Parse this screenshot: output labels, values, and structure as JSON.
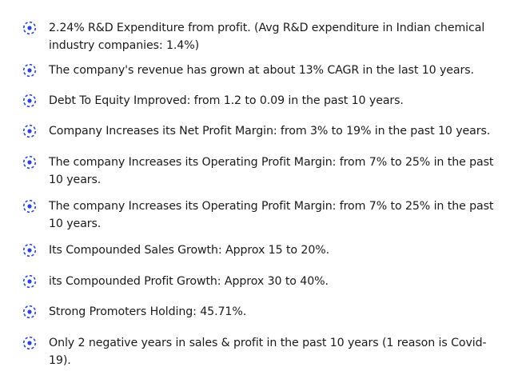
{
  "colors": {
    "bullet_accent": "#2b45d8",
    "text": "#1a1a1a",
    "background": "#ffffff"
  },
  "bullet_icon_name": "dashed-circle-dot-icon",
  "items": [
    {
      "text": "2.24% R&D Expenditure from profit. (Avg R&D expenditure in Indian chemical industry companies: 1.4%)"
    },
    {
      "text": "The company's revenue has grown at about 13% CAGR in the last 10 years."
    },
    {
      "text": "Debt To Equity Improved: from 1.2 to 0.09 in the past 10 years."
    },
    {
      "text": "Company Increases its Net Profit Margin: from 3% to 19% in the past 10 years."
    },
    {
      "text": "The company Increases its Operating Profit Margin: from 7% to 25% in the past 10 years."
    },
    {
      "text": "The company Increases its Operating Profit Margin: from 7% to 25% in the past 10 years."
    },
    {
      "text": "Its Compounded Sales Growth: Approx 15 to 20%."
    },
    {
      "text": "its Compounded Profit Growth: Approx 30 to 40%."
    },
    {
      "text": "Strong Promoters Holding: 45.71%."
    },
    {
      "text": "Only 2 negative years in sales & profit in the past 10 years (1 reason is Covid-19)."
    }
  ]
}
